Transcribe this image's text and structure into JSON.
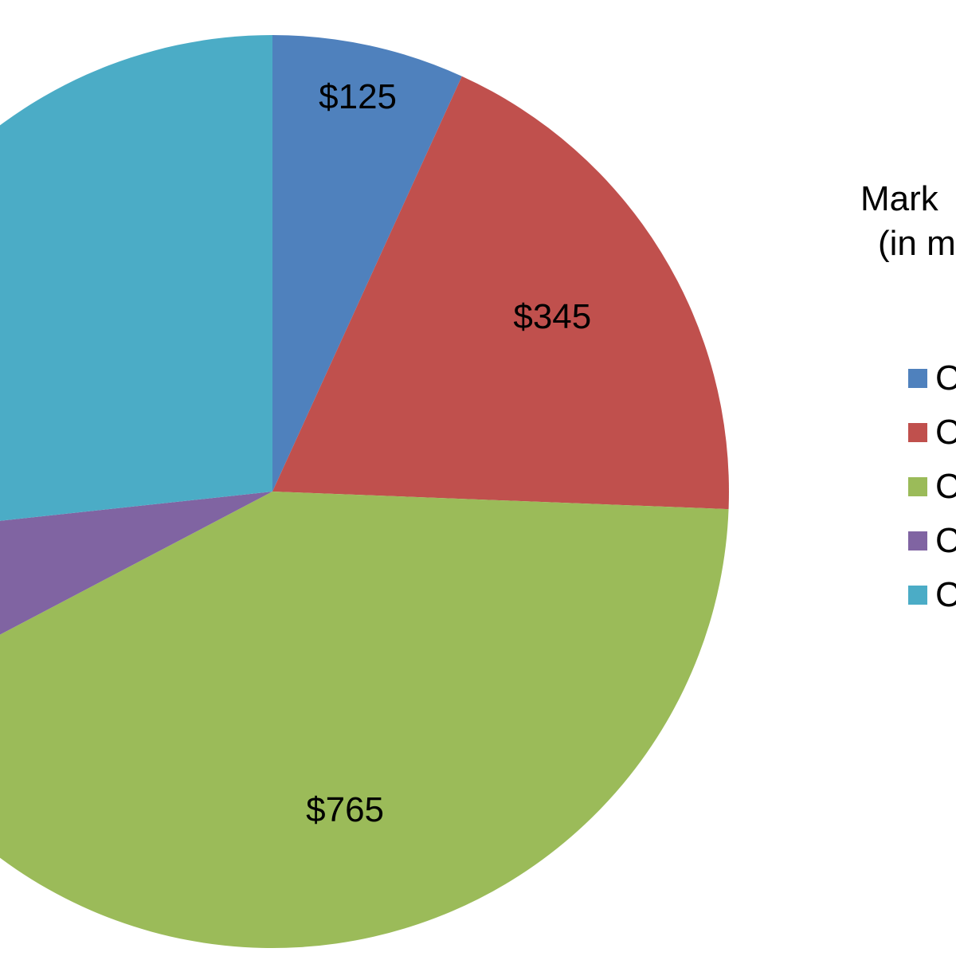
{
  "chart_data": {
    "type": "pie",
    "title_line1": "Mark",
    "title_line2": "(in m",
    "slices": [
      {
        "label": "$125",
        "value": 125,
        "color": "#4F81BD",
        "legend_text": "C"
      },
      {
        "label": "$345",
        "value": 345,
        "color": "#C0504D",
        "legend_text": "C"
      },
      {
        "label": "$765",
        "value": 765,
        "color": "#9BBB59",
        "legend_text": "C"
      },
      {
        "label": "$",
        "value": 110,
        "color": "#8064A2",
        "legend_text": "C"
      },
      {
        "label": "",
        "value": 490,
        "color": "#4BACC6",
        "legend_text": "C"
      }
    ],
    "legend_placement": "right",
    "start_angle_deg": 0,
    "direction": "clockwise"
  }
}
